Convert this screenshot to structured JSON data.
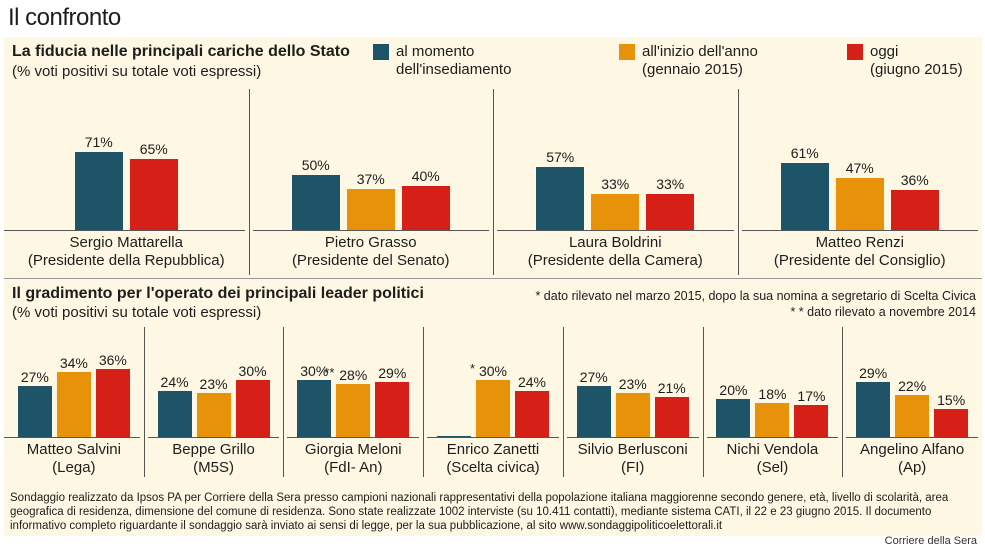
{
  "page_title": "Il confronto",
  "colors": {
    "insediamento": "#1e5468",
    "inizio_anno": "#e8920a",
    "oggi": "#d51f17",
    "background": "#fdf7e3"
  },
  "legend": {
    "insediamento": "al momento\ndell'insediamento",
    "inizio_anno": "all'inizio dell'anno\n(gennaio 2015)",
    "oggi": "oggi\n(giugno 2015)"
  },
  "section1": {
    "title": "La fiducia nelle principali cariche dello Stato",
    "subtitle": "(% voti positivi su totale voti espressi)"
  },
  "section2": {
    "title": "Il gradimento per l'operato dei principali leader politici",
    "subtitle": "(% voti positivi su totale voti espressi)",
    "note1": "* dato rilevato nel marzo 2015, dopo la sua nomina a segretario di Scelta Civica",
    "note2": "* * dato rilevato a novembre 2014"
  },
  "footer": "Sondaggio realizzato da Ipsos PA per Corriere della Sera presso campioni nazionali rappresentativi della popolazione italiana maggiorenne secondo genere, età, livello di scolarità, area geografica di residenza, dimensione del comune di residenza. Sono state realizzate 1002 interviste (su 10.411 contatti), mediante sistema CATI, il 22 e 23 giugno 2015. Il documento informativo completo riguardante il sondaggio sarà inviato ai sensi di legge, per la sua pubblicazione, al sito www.sondaggipoliticoelettorali.it",
  "credit": "Corriere della Sera",
  "chart_data": [
    {
      "type": "bar",
      "title": "La fiducia nelle principali cariche dello Stato",
      "subtitle": "(% voti positivi su totale voti espressi)",
      "series_names": [
        "al momento dell'insediamento",
        "all'inizio dell'anno (gennaio 2015)",
        "oggi (giugno 2015)"
      ],
      "groups": [
        {
          "name": "Sergio Mattarella",
          "role": "(Presidente della Repubblica)",
          "values": [
            71,
            null,
            65
          ],
          "labels": [
            "71%",
            "",
            "65%"
          ]
        },
        {
          "name": "Pietro Grasso",
          "role": "(Presidente del Senato)",
          "values": [
            50,
            37,
            40
          ],
          "labels": [
            "50%",
            "37%",
            "40%"
          ]
        },
        {
          "name": "Laura Boldrini",
          "role": "(Presidente della Camera)",
          "values": [
            57,
            33,
            33
          ],
          "labels": [
            "57%",
            "33%",
            "33%"
          ]
        },
        {
          "name": "Matteo Renzi",
          "role": "(Presidente del Consiglio)",
          "values": [
            61,
            47,
            36
          ],
          "labels": [
            "61%",
            "47%",
            "36%"
          ]
        }
      ]
    },
    {
      "type": "bar",
      "title": "Il gradimento per l'operato dei principali leader politici",
      "subtitle": "(% voti positivi su totale voti espressi)",
      "series_names": [
        "al momento dell'insediamento",
        "all'inizio dell'anno (gennaio 2015)",
        "oggi (giugno 2015)"
      ],
      "groups": [
        {
          "name": "Matteo Salvini",
          "role": "(Lega)",
          "values": [
            27,
            34,
            36
          ],
          "labels": [
            "27%",
            "34%",
            "36%"
          ]
        },
        {
          "name": "Beppe Grillo",
          "role": "(M5S)",
          "values": [
            24,
            23,
            30
          ],
          "labels": [
            "24%",
            "23%",
            "30%"
          ]
        },
        {
          "name": "Giorgia Meloni",
          "role": "(FdI- An)",
          "values": [
            30,
            28,
            29
          ],
          "labels": [
            "30%",
            "28%",
            "29%"
          ],
          "marks": [
            "",
            "**",
            ""
          ]
        },
        {
          "name": "Enrico Zanetti",
          "role": "(Scelta civica)",
          "values": [
            0,
            30,
            24
          ],
          "labels": [
            "",
            "30%",
            "24%"
          ],
          "marks": [
            "",
            "*",
            ""
          ]
        },
        {
          "name": "Silvio Berlusconi",
          "role": "(FI)",
          "values": [
            27,
            23,
            21
          ],
          "labels": [
            "27%",
            "23%",
            "21%"
          ]
        },
        {
          "name": "Nichi Vendola",
          "role": "(Sel)",
          "values": [
            20,
            18,
            17
          ],
          "labels": [
            "20%",
            "18%",
            "17%"
          ]
        },
        {
          "name": "Angelino Alfano",
          "role": "(Ap)",
          "values": [
            29,
            22,
            15
          ],
          "labels": [
            "29%",
            "22%",
            "15%"
          ]
        }
      ]
    }
  ]
}
